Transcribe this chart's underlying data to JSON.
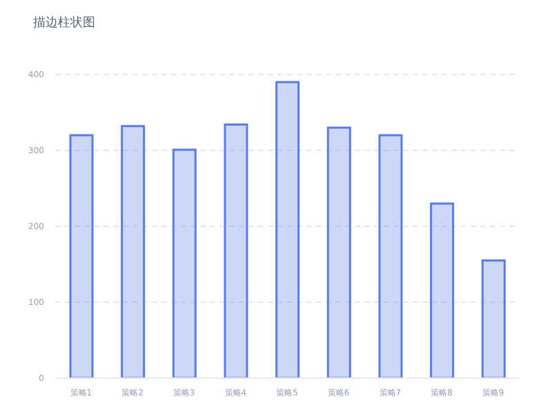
{
  "chart_data": {
    "type": "bar",
    "title": "描边柱状图",
    "categories": [
      "策略1",
      "策略2",
      "策略3",
      "策略4",
      "策略5",
      "策略6",
      "策略7",
      "策略8",
      "策略9"
    ],
    "values": [
      320,
      332,
      301,
      334,
      390,
      330,
      320,
      230,
      155
    ],
    "color": "#5b7ce8",
    "ylim": [
      0,
      400
    ],
    "yticks": [
      0,
      100,
      200,
      300,
      400
    ],
    "grid": "y"
  }
}
